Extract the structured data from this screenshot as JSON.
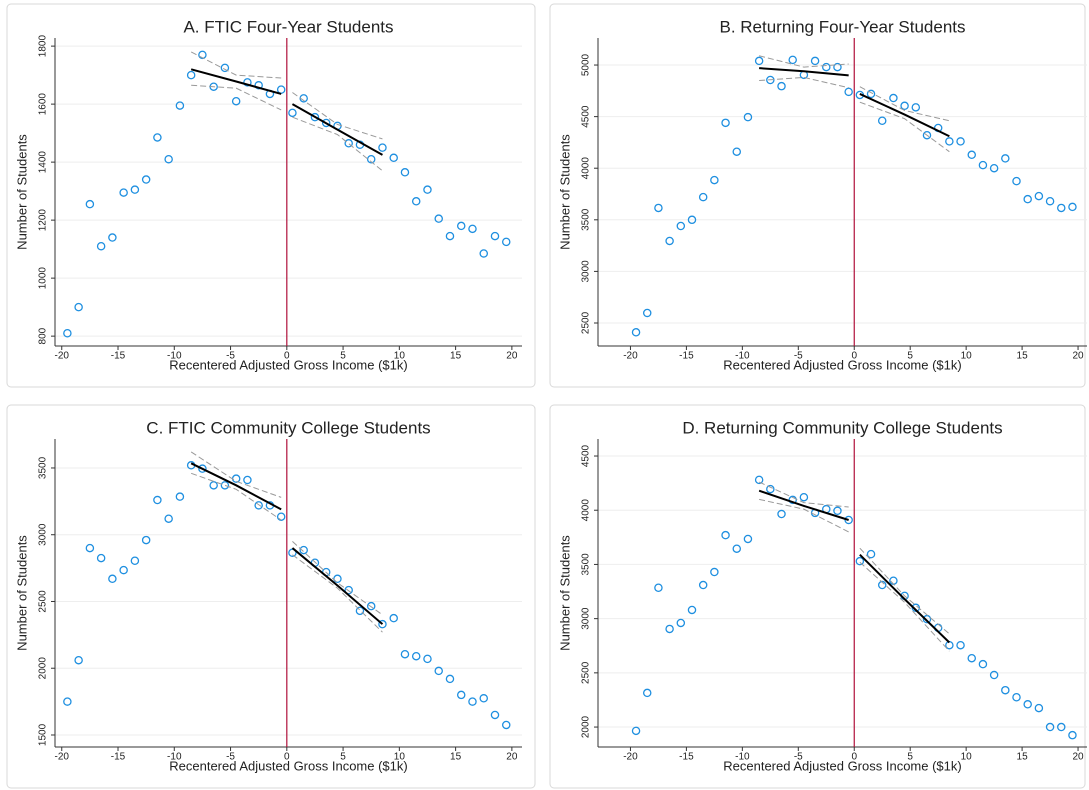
{
  "chart_data": [
    {
      "type": "scatter",
      "title": "A. FTIC Four-Year Students",
      "xlabel": "Recentered Adjusted Gross Income ($1k)",
      "ylabel": "Number of Students",
      "x": [
        -19.5,
        -18.5,
        -17.5,
        -16.5,
        -15.5,
        -14.5,
        -13.5,
        -12.5,
        -11.5,
        -10.5,
        -9.5,
        -8.5,
        -7.5,
        -6.5,
        -5.5,
        -4.5,
        -3.5,
        -2.5,
        -1.5,
        -0.5,
        0.5,
        1.5,
        2.5,
        3.5,
        4.5,
        5.5,
        6.5,
        7.5,
        8.5,
        9.5,
        10.5,
        11.5,
        12.5,
        13.5,
        14.5,
        15.5,
        16.5,
        17.5,
        18.5,
        19.5
      ],
      "series": [
        {
          "color": "#1e8fe0",
          "values": [
            810,
            900,
            1255,
            1110,
            1140,
            1295,
            1305,
            1340,
            1485,
            1410,
            1595,
            1700,
            1770,
            1660,
            1725,
            1610,
            1675,
            1665,
            1635,
            1650,
            1570,
            1620,
            1555,
            1535,
            1525,
            1465,
            1460,
            1410,
            1450,
            1415,
            1365,
            1265,
            1305,
            1205,
            1145,
            1180,
            1170,
            1085,
            1145,
            1125
          ]
        }
      ],
      "fits": [
        {
          "x": [
            -8.5,
            -4.5,
            -0.5
          ],
          "values": [
            1720,
            1678,
            1635
          ],
          "upper": [
            1780,
            1700,
            1690
          ],
          "lower": [
            1665,
            1655,
            1580
          ]
        },
        {
          "x": [
            0.5,
            4.5,
            8.5
          ],
          "values": [
            1600,
            1512,
            1425
          ],
          "upper": [
            1640,
            1530,
            1480
          ],
          "lower": [
            1555,
            1495,
            1370
          ]
        }
      ],
      "cutoff": 0,
      "xlim": [
        -20.6,
        20.9
      ],
      "ylim": [
        766,
        1828
      ],
      "xticks": [
        -20,
        -15,
        -10,
        -5,
        0,
        5,
        10,
        15,
        20
      ],
      "yticks": [
        800,
        1000,
        1200,
        1400,
        1600,
        1800
      ],
      "grid": true
    },
    {
      "type": "scatter",
      "title": "B. Returning Four-Year Students",
      "xlabel": "Recentered Adjusted Gross Income ($1k)",
      "ylabel": "Number of Students",
      "x": [
        -19.5,
        -18.5,
        -17.5,
        -16.5,
        -15.5,
        -14.5,
        -13.5,
        -12.5,
        -11.5,
        -10.5,
        -9.5,
        -8.5,
        -7.5,
        -6.5,
        -5.5,
        -4.5,
        -3.5,
        -2.5,
        -1.5,
        -0.5,
        0.5,
        1.5,
        2.5,
        3.5,
        4.5,
        5.5,
        6.5,
        7.5,
        8.5,
        9.5,
        10.5,
        11.5,
        12.5,
        13.5,
        14.5,
        15.5,
        16.5,
        17.5,
        18.5,
        19.5
      ],
      "series": [
        {
          "color": "#1e8fe0",
          "values": [
            2410,
            2597,
            3615,
            3295,
            3440,
            3500,
            3720,
            3885,
            4440,
            4160,
            4495,
            5040,
            4855,
            4795,
            5050,
            4905,
            5040,
            4980,
            4980,
            4740,
            4710,
            4720,
            4460,
            4680,
            4605,
            4590,
            4320,
            4390,
            4260,
            4260,
            4130,
            4030,
            4000,
            4095,
            3875,
            3700,
            3730,
            3680,
            3615,
            3625
          ]
        }
      ],
      "fits": [
        {
          "x": [
            -8.5,
            -4.5,
            -0.5
          ],
          "values": [
            4970,
            4940,
            4900
          ],
          "upper": [
            5090,
            4980,
            5010
          ],
          "lower": [
            4850,
            4880,
            4780
          ]
        },
        {
          "x": [
            0.5,
            4.5,
            8.5
          ],
          "values": [
            4720,
            4520,
            4310
          ],
          "upper": [
            4790,
            4560,
            4460
          ],
          "lower": [
            4640,
            4480,
            4160
          ]
        }
      ],
      "cutoff": 0,
      "xlim": [
        -22.9,
        20.8
      ],
      "ylim": [
        2277,
        5262
      ],
      "xticks": [
        -20,
        -15,
        -10,
        -5,
        0,
        5,
        10,
        15,
        20
      ],
      "yticks": [
        2500,
        3000,
        3500,
        4000,
        4500,
        5000
      ],
      "grid": true
    },
    {
      "type": "scatter",
      "title": "C. FTIC Community College Students",
      "xlabel": "Recentered Adjusted Gross Income ($1k)",
      "ylabel": "Number of Students",
      "x": [
        -19.5,
        -18.5,
        -17.5,
        -16.5,
        -15.5,
        -14.5,
        -13.5,
        -12.5,
        -11.5,
        -10.5,
        -9.5,
        -8.5,
        -7.5,
        -6.5,
        -5.5,
        -4.5,
        -3.5,
        -2.5,
        -1.5,
        -0.5,
        0.5,
        1.5,
        2.5,
        3.5,
        4.5,
        5.5,
        6.5,
        7.5,
        8.5,
        9.5,
        10.5,
        11.5,
        12.5,
        13.5,
        14.5,
        15.5,
        16.5,
        17.5,
        18.5,
        19.5
      ],
      "series": [
        {
          "color": "#1e8fe0",
          "values": [
            1750,
            2060,
            2900,
            2825,
            2670,
            2735,
            2805,
            2960,
            3260,
            3120,
            3285,
            3520,
            3495,
            3370,
            3370,
            3420,
            3410,
            3220,
            3220,
            3135,
            2865,
            2885,
            2790,
            2720,
            2670,
            2585,
            2430,
            2465,
            2330,
            2375,
            2105,
            2090,
            2070,
            1980,
            1920,
            1800,
            1750,
            1775,
            1650,
            1575
          ]
        }
      ],
      "fits": [
        {
          "x": [
            -8.5,
            -4.5,
            -0.5
          ],
          "values": [
            3535,
            3370,
            3190
          ],
          "upper": [
            3620,
            3400,
            3280
          ],
          "lower": [
            3460,
            3340,
            3110
          ]
        },
        {
          "x": [
            0.5,
            4.5,
            8.5
          ],
          "values": [
            2900,
            2620,
            2330
          ],
          "upper": [
            2950,
            2640,
            2400
          ],
          "lower": [
            2850,
            2600,
            2270
          ]
        }
      ],
      "cutoff": 0,
      "xlim": [
        -20.6,
        20.9
      ],
      "ylim": [
        1410,
        3717
      ],
      "xticks": [
        -20,
        -15,
        -10,
        -5,
        0,
        5,
        10,
        15,
        20
      ],
      "yticks": [
        1500,
        2000,
        2500,
        3000,
        3500
      ],
      "grid": true
    },
    {
      "type": "scatter",
      "title": "D. Returning Community College Students",
      "xlabel": "Recentered Adjusted Gross Income ($1k)",
      "ylabel": "Number of Students",
      "x": [
        -19.5,
        -18.5,
        -17.5,
        -16.5,
        -15.5,
        -14.5,
        -13.5,
        -12.5,
        -11.5,
        -10.5,
        -9.5,
        -8.5,
        -7.5,
        -6.5,
        -5.5,
        -4.5,
        -3.5,
        -2.5,
        -1.5,
        -0.5,
        0.5,
        1.5,
        2.5,
        3.5,
        4.5,
        5.5,
        6.5,
        7.5,
        8.5,
        9.5,
        10.5,
        11.5,
        12.5,
        13.5,
        14.5,
        15.5,
        16.5,
        17.5,
        18.5,
        19.5
      ],
      "series": [
        {
          "color": "#1e8fe0",
          "values": [
            1965,
            2315,
            3285,
            2905,
            2960,
            3080,
            3310,
            3430,
            3770,
            3645,
            3735,
            4280,
            4195,
            3965,
            4095,
            4120,
            3975,
            4010,
            3995,
            3910,
            3530,
            3595,
            3310,
            3350,
            3210,
            3100,
            2995,
            2915,
            2755,
            2755,
            2635,
            2580,
            2480,
            2340,
            2275,
            2210,
            2175,
            2000,
            2000,
            1925
          ]
        }
      ],
      "fits": [
        {
          "x": [
            -8.5,
            -4.5,
            -0.5
          ],
          "values": [
            4180,
            4040,
            3910
          ],
          "upper": [
            4260,
            4070,
            4030
          ],
          "lower": [
            4100,
            4010,
            3800
          ]
        },
        {
          "x": [
            0.5,
            4.5,
            8.5
          ],
          "values": [
            3590,
            3180,
            2780
          ],
          "upper": [
            3650,
            3210,
            2860
          ],
          "lower": [
            3520,
            3150,
            2700
          ]
        }
      ],
      "cutoff": 0,
      "xlim": [
        -22.9,
        20.8
      ],
      "ylim": [
        1816,
        4657
      ],
      "xticks": [
        -20,
        -15,
        -10,
        -5,
        0,
        5,
        10,
        15,
        20
      ],
      "yticks": [
        2000,
        2500,
        3000,
        3500,
        4000,
        4500
      ],
      "grid": true
    }
  ]
}
